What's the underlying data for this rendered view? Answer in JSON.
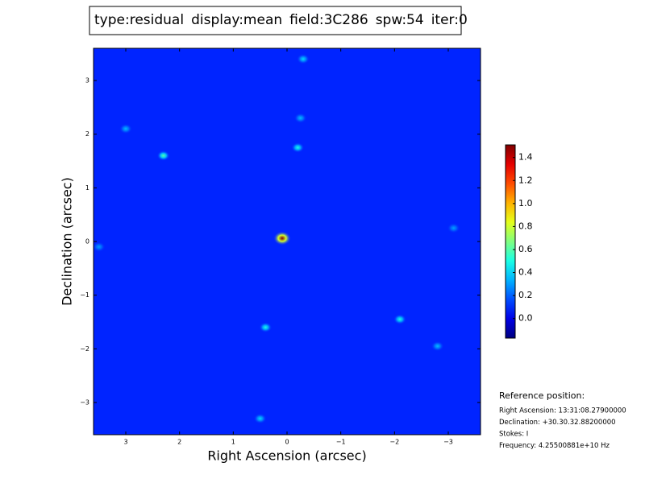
{
  "chart_data": {
    "type": "image",
    "title_parts": [
      {
        "text": "type:residual",
        "color": "#000000"
      },
      {
        "text": "display:mean",
        "color": "#ff0000"
      },
      {
        "text": "field:3C286",
        "color": "#000000"
      },
      {
        "text": "spw:54",
        "color": "#000000"
      },
      {
        "text": "iter:0",
        "color": "#000000"
      }
    ],
    "xlabel": "Right Ascension (arcsec)",
    "ylabel": "Declination (arcsec)",
    "xlim": [
      3.6,
      -3.6
    ],
    "ylim": [
      -3.6,
      3.6
    ],
    "xticks": [
      3,
      2,
      1,
      0,
      {
        "value": -1,
        "label": "−1"
      },
      {
        "value": -2,
        "label": "−2"
      },
      {
        "value": -3,
        "label": "−3"
      }
    ],
    "yticks": [
      {
        "value": -3,
        "label": "−3"
      },
      {
        "value": -2,
        "label": "−2"
      },
      {
        "value": -1,
        "label": "−1"
      },
      0,
      1,
      2,
      3
    ],
    "colormap": "jet",
    "background_value": 0.1,
    "x": [
      0.09,
      2.3,
      -0.2,
      -2.1,
      0.4,
      0.5,
      -0.3,
      3.0,
      -2.8,
      -3.1,
      -0.25,
      3.5
    ],
    "y": [
      0.06,
      1.6,
      1.75,
      -1.45,
      -1.6,
      -3.3,
      3.4,
      2.1,
      -1.95,
      0.25,
      2.3,
      -0.1
    ],
    "values": [
      1.5,
      0.6,
      0.5,
      0.5,
      0.5,
      0.4,
      0.4,
      0.35,
      0.35,
      0.3,
      0.35,
      0.3
    ],
    "colorbar": {
      "clim": [
        -0.17,
        1.51
      ],
      "ticks": [
        {
          "value": 0,
          "label": "0.0"
        },
        0.2,
        0.4,
        0.6,
        0.8,
        {
          "value": 1,
          "label": "1.0"
        },
        1.2,
        1.4
      ]
    }
  },
  "reference": {
    "title": "Reference position:",
    "lines": [
      "Right Ascension: 13:31:08.27900000",
      "Declination: +30.30.32.88200000",
      "Stokes: I",
      "Frequency: 4.25500881e+10 Hz"
    ]
  }
}
